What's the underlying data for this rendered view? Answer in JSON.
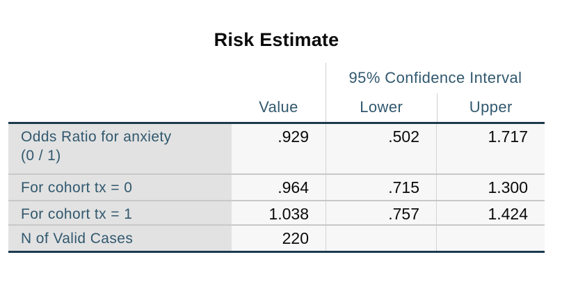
{
  "title": "Risk Estimate",
  "table": {
    "columns": {
      "value": "Value",
      "ci_group": "95% Confidence Interval",
      "lower": "Lower",
      "upper": "Upper"
    },
    "rows": [
      {
        "label": "Odds Ratio for anxiety\n(0 / 1)",
        "value": ".929",
        "lower": ".502",
        "upper": "1.717"
      },
      {
        "label": "For cohort tx = 0",
        "value": ".964",
        "lower": ".715",
        "upper": "1.300"
      },
      {
        "label": "For cohort tx = 1",
        "value": "1.038",
        "lower": ".757",
        "upper": "1.424"
      },
      {
        "label": "N of Valid Cases",
        "value": "220",
        "lower": "",
        "upper": ""
      }
    ]
  },
  "colors": {
    "header_text": "#31586e",
    "label_text": "#31586e",
    "number_text": "#0a0a0a",
    "dark_border": "#1b3a4e",
    "label_column_bg": "#e2e2e2",
    "data_cell_bg": "#f7f7f8",
    "row_separator": "#c8c8c8",
    "column_divider": "#d4d4d4",
    "page_bg": "#ffffff"
  },
  "chart_data": {
    "type": "table",
    "title": "Risk Estimate",
    "column_headers": [
      "",
      "Value",
      "95% Confidence Interval — Lower",
      "95% Confidence Interval — Upper"
    ],
    "rows": [
      [
        "Odds Ratio for anxiety (0 / 1)",
        0.929,
        0.502,
        1.717
      ],
      [
        "For cohort tx = 0",
        0.964,
        0.715,
        1.3
      ],
      [
        "For cohort tx = 1",
        1.038,
        0.757,
        1.424
      ],
      [
        "N of Valid Cases",
        220,
        null,
        null
      ]
    ]
  }
}
